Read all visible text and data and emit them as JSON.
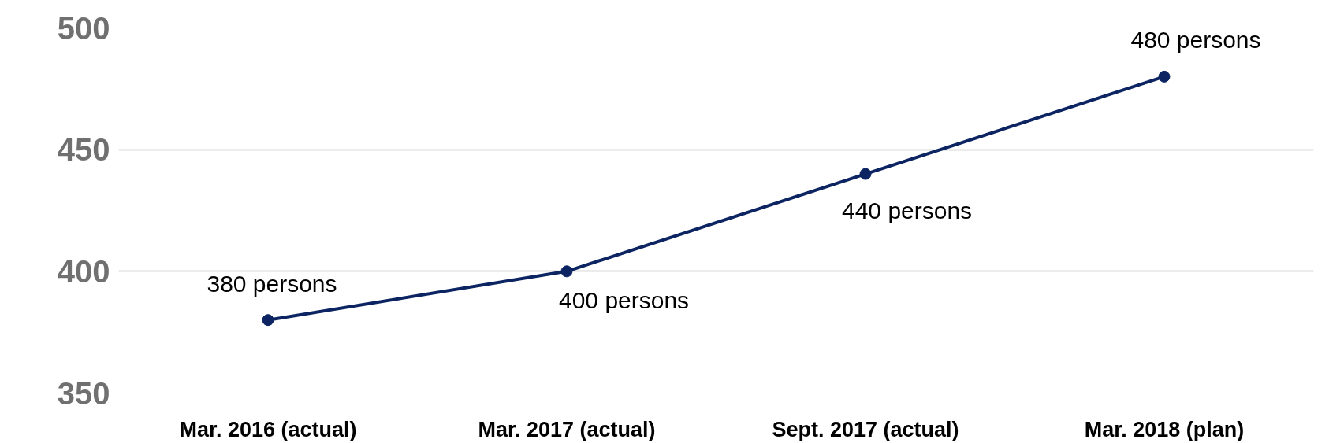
{
  "chart_data": {
    "type": "line",
    "categories": [
      "Mar. 2016 (actual)",
      "Mar. 2017 (actual)",
      "Sept. 2017 (actual)",
      "Mar. 2018 (plan)"
    ],
    "series": [
      {
        "color": "#0c2461",
        "values": [
          380,
          400,
          440,
          480
        ]
      }
    ],
    "value_labels": [
      "380 persons",
      "400 persons",
      "440 persons",
      "480 persons"
    ],
    "ylim": [
      350,
      500
    ],
    "yticks": [
      350,
      400,
      450,
      500
    ],
    "grid": "y",
    "marker": "circle",
    "line_style": "solid"
  }
}
